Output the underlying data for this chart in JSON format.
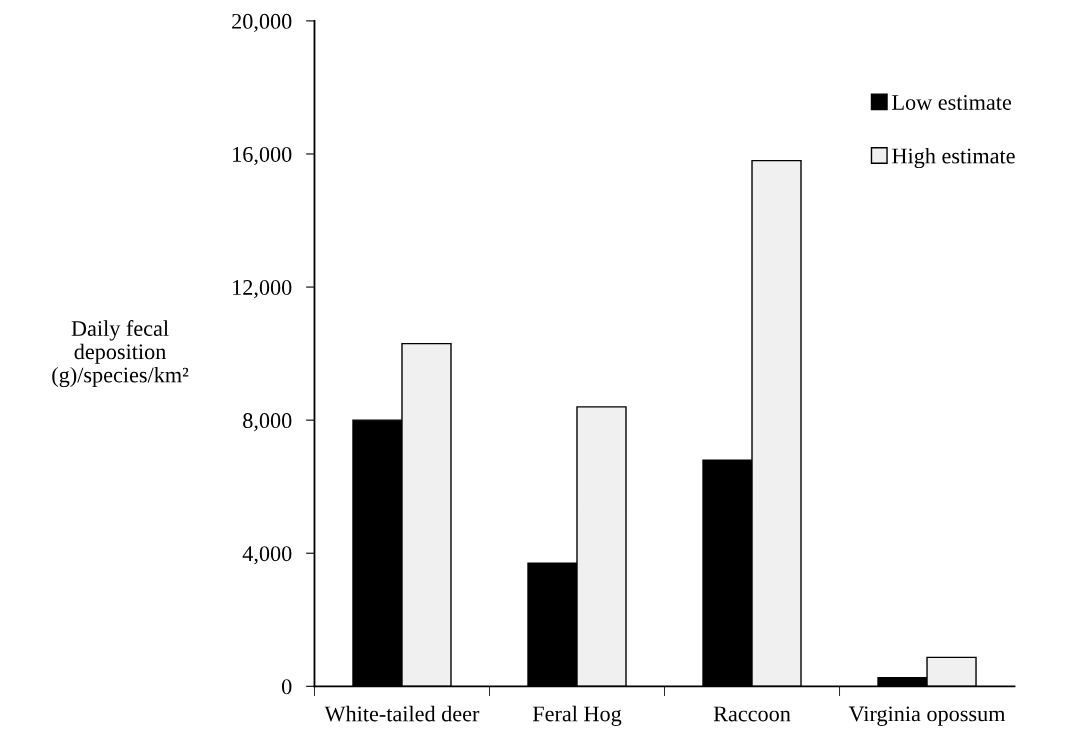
{
  "chart_data": {
    "type": "bar",
    "categories": [
      "White-tailed deer",
      "Feral Hog",
      "Raccoon",
      "Virginia opossum"
    ],
    "series": [
      {
        "name": "Low estimate",
        "color": "#000000",
        "values": [
          8000,
          3700,
          6800,
          260
        ]
      },
      {
        "name": "High estimate",
        "color": "#f0f0f0",
        "values": [
          10300,
          8400,
          15800,
          870
        ]
      }
    ],
    "ylabel": "Daily fecal\ndeposition\n(g)/species/km²",
    "ylim": [
      0,
      20000
    ],
    "yticks": [
      {
        "value": 0,
        "label": "0"
      },
      {
        "value": 4000,
        "label": "4,000"
      },
      {
        "value": 8000,
        "label": "8,000"
      },
      {
        "value": 12000,
        "label": "12,000"
      },
      {
        "value": 16000,
        "label": "16,000"
      },
      {
        "value": 20000,
        "label": "20,000"
      }
    ],
    "grid": false,
    "legend": "top right"
  }
}
